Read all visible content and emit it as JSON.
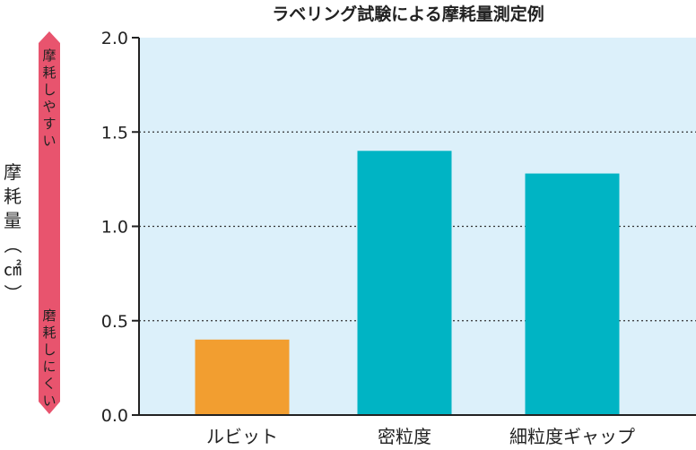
{
  "chart_data": {
    "type": "bar",
    "title": "ラベリング試験による摩耗量測定例",
    "ylabel": "摩耗量（㎠）",
    "ylim": [
      0,
      2.0
    ],
    "yticks": [
      "0.0",
      "0.5",
      "1.0",
      "1.5",
      "2.0"
    ],
    "gridlines": [
      0.5,
      1.0,
      1.5
    ],
    "categories": [
      "ルビット",
      "密粒度",
      "細粒度ギャップ"
    ],
    "values": [
      0.4,
      1.4,
      1.28
    ],
    "bar_colors": [
      "#f29e30",
      "#00b4c4",
      "#00b4c4"
    ],
    "plot_background": "#dcf0fa",
    "scale_arrow": {
      "color": "#e8546e",
      "top_label": "摩耗しやすい",
      "bottom_label": "磨耗しにくい"
    }
  }
}
